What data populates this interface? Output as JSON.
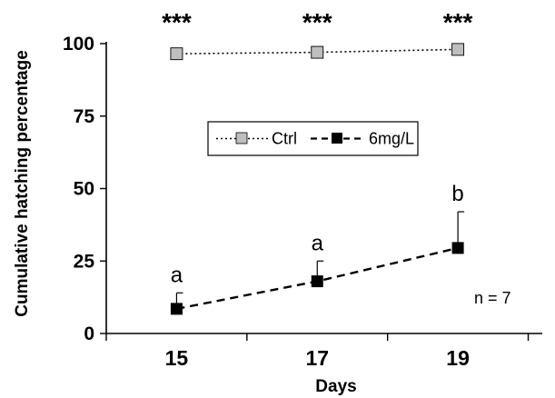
{
  "chart_data": {
    "type": "line",
    "xlabel": "Days",
    "ylabel": "Cumulative hatching percentage",
    "x": [
      15,
      17,
      19
    ],
    "xlim": [
      14,
      20.2
    ],
    "ylim": [
      0,
      100
    ],
    "yticks": [
      0,
      25,
      50,
      75,
      100
    ],
    "xticks": [
      15,
      17,
      19
    ],
    "series": [
      {
        "name": "Ctrl",
        "values": [
          96.5,
          97,
          98
        ],
        "line_style": "dotted",
        "marker": "square",
        "marker_color": "#bfbfbf",
        "errors": [
          null,
          null,
          null
        ]
      },
      {
        "name": "6mg/L",
        "values": [
          8.5,
          18,
          29.5
        ],
        "line_style": "dashed",
        "marker": "square",
        "marker_color": "#000000",
        "errors": [
          5.5,
          7,
          12.5
        ]
      }
    ],
    "significance": [
      "***",
      "***",
      "***"
    ],
    "group_letters": [
      "a",
      "a",
      "b"
    ],
    "annotation": "n = 7",
    "legend_position": "center",
    "grid": false
  }
}
